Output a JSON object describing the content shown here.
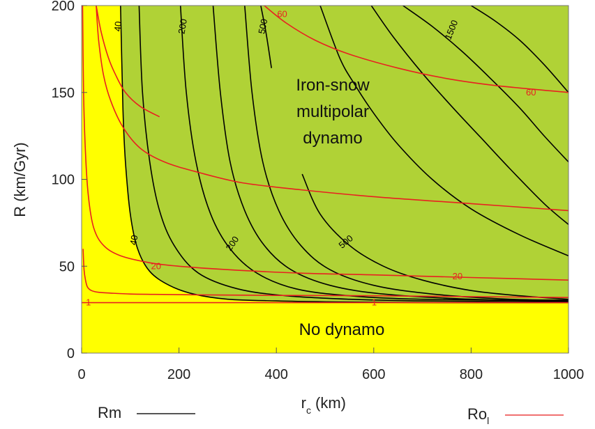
{
  "chart_data": {
    "type": "line",
    "title": "",
    "xlabel": "r",
    "xlabel_sub": "c",
    "xlabel_unit": "(km)",
    "ylabel": "R  (km/Gyr)",
    "xlim": [
      0,
      1000
    ],
    "ylim": [
      0,
      200
    ],
    "xticks": [
      "0",
      "200",
      "400",
      "600",
      "800",
      "1000"
    ],
    "yticks": [
      "0",
      "50",
      "100",
      "150",
      "200"
    ],
    "grid": false,
    "colors": {
      "no_dynamo": "#ffff00",
      "dynamo": "#b0d236",
      "rm": "#000000",
      "ro": "#e82020"
    },
    "regions": [
      {
        "name": "Iron-snow multipolar dynamo",
        "lines": [
          "Iron-snow",
          "multipolar",
          "dynamo"
        ]
      },
      {
        "name": "No dynamo",
        "lines": [
          "No dynamo"
        ]
      }
    ],
    "dynamo_boundary": {
      "x": [
        80,
        85,
        90,
        100,
        115,
        140,
        180,
        230,
        300,
        400,
        500,
        700,
        1000
      ],
      "y": [
        200,
        140,
        110,
        80,
        60,
        47,
        39,
        34,
        31,
        30,
        29.5,
        29,
        29
      ]
    },
    "legend": [
      {
        "label": "Rm",
        "color": "#555555"
      },
      {
        "label": "Ro",
        "sub": "l",
        "color": "#f07070"
      }
    ],
    "series": [
      {
        "name": "Rm",
        "label": "40",
        "color": "#000000",
        "x": [
          80,
          85,
          90,
          100,
          115,
          140,
          180,
          230,
          300,
          400,
          500,
          700,
          1000
        ],
        "y": [
          200,
          140,
          110,
          80,
          60,
          47,
          39,
          34,
          31,
          30,
          29.5,
          29,
          29
        ]
      },
      {
        "name": "Rm",
        "label": "",
        "color": "#000000",
        "x": [
          118,
          125,
          140,
          160,
          190,
          240,
          320,
          420,
          550,
          700,
          1000
        ],
        "y": [
          200,
          150,
          110,
          82,
          62,
          46,
          37,
          33,
          31,
          30,
          29.5
        ]
      },
      {
        "name": "Rm",
        "label": "200",
        "color": "#000000",
        "x": [
          203,
          215,
          235,
          265,
          305,
          360,
          440,
          550,
          700,
          1000
        ],
        "y": [
          200,
          150,
          110,
          80,
          60,
          46,
          37,
          33,
          31,
          30
        ]
      },
      {
        "name": "Rm",
        "label": "",
        "color": "#000000",
        "x": [
          270,
          285,
          305,
          335,
          375,
          430,
          510,
          620,
          800,
          1000
        ],
        "y": [
          200,
          150,
          110,
          82,
          62,
          48,
          39,
          34,
          31,
          30
        ]
      },
      {
        "name": "Rm",
        "label": "",
        "color": "#000000",
        "x": [
          335,
          350,
          372,
          405,
          450,
          510,
          600,
          720,
          880,
          1000
        ],
        "y": [
          200,
          150,
          110,
          82,
          62,
          48,
          39,
          34,
          31,
          30.5
        ]
      },
      {
        "name": "Rm",
        "label": "500",
        "color": "#000000",
        "x": [
          368,
          379,
          390
        ],
        "y": [
          200,
          184,
          164
        ]
      },
      {
        "name": "Rm",
        "label": "500",
        "color": "#000000",
        "x": [
          453,
          490,
          550,
          620,
          700,
          800,
          900,
          1000
        ],
        "y": [
          103,
          80,
          62,
          50,
          42,
          36,
          33,
          31
        ]
      },
      {
        "name": "Rm",
        "label": "",
        "color": "#000000",
        "x": [
          490,
          530,
          560,
          600,
          650,
          720,
          800,
          900,
          1000
        ],
        "y": [
          200,
          170,
          155,
          138,
          120,
          100,
          83,
          68,
          56
        ]
      },
      {
        "name": "Rm",
        "label": "1500",
        "color": "#000000",
        "x": [
          595,
          640,
          700,
          760,
          820,
          880,
          950,
          1000
        ],
        "y": [
          200,
          182,
          161,
          142,
          124,
          106,
          86,
          74
        ]
      },
      {
        "name": "Rm",
        "label": "",
        "color": "#000000",
        "x": [
          660,
          720,
          780,
          840,
          900,
          950,
          1000
        ],
        "y": [
          200,
          188,
          174,
          158,
          141,
          125,
          110
        ]
      },
      {
        "name": "Rm",
        "label": "",
        "color": "#000000",
        "x": [
          800,
          850,
          900,
          950,
          1000
        ],
        "y": [
          200,
          191,
          180,
          166,
          150
        ]
      },
      {
        "name": "Ro",
        "label": "1",
        "color": "#e82020",
        "x": [
          0,
          100,
          300,
          600,
          1000
        ],
        "y": [
          29,
          29,
          29,
          29,
          29
        ]
      },
      {
        "name": "Ro",
        "label": "1",
        "color": "#e82020",
        "x": [
          3,
          5,
          8,
          12,
          20,
          35,
          60,
          100,
          150,
          250,
          400,
          600,
          800,
          1000
        ],
        "y": [
          60,
          48,
          42,
          38,
          36,
          35,
          34.5,
          34,
          33.8,
          33.5,
          33.2,
          33,
          32.5,
          32
        ]
      },
      {
        "name": "Ro",
        "label": "20",
        "color": "#e82020",
        "x": [
          2,
          4,
          8,
          14,
          25,
          45,
          80,
          140,
          200,
          300,
          450,
          600,
          800,
          1000
        ],
        "y": [
          200,
          150,
          115,
          90,
          72,
          62,
          56,
          52,
          50,
          48,
          46,
          45,
          43.5,
          42
        ]
      },
      {
        "name": "Ro",
        "label": "60",
        "color": "#e82020",
        "x": [
          30,
          35,
          45,
          60,
          85,
          120,
          170,
          240,
          330,
          450,
          600,
          800,
          1000
        ],
        "y": [
          200,
          180,
          160,
          145,
          130,
          118,
          110,
          104,
          98,
          94,
          90,
          86,
          82
        ]
      },
      {
        "name": "Ro",
        "label": "60",
        "color": "#e82020",
        "x": [
          375,
          420,
          480,
          550,
          650,
          750,
          850,
          1000
        ],
        "y": [
          200,
          190,
          180,
          172,
          164,
          158,
          154,
          150
        ]
      },
      {
        "name": "Ro",
        "label": "",
        "color": "#e82020",
        "x": [
          30,
          40,
          55,
          70,
          90,
          120,
          160
        ],
        "y": [
          200,
          185,
          170,
          160,
          150,
          142,
          136
        ]
      }
    ],
    "contour_labels": [
      {
        "text": "40",
        "x": 75,
        "y": 188,
        "color": "#000000",
        "angle": -85
      },
      {
        "text": "200",
        "x": 208,
        "y": 188,
        "color": "#000000",
        "angle": -80
      },
      {
        "text": "500",
        "x": 373,
        "y": 188,
        "color": "#000000",
        "angle": -78
      },
      {
        "text": "1500",
        "x": 760,
        "y": 186,
        "color": "#000000",
        "angle": -68
      },
      {
        "text": "40",
        "x": 108,
        "y": 65,
        "color": "#000000",
        "angle": -80
      },
      {
        "text": "200",
        "x": 310,
        "y": 63,
        "color": "#000000",
        "angle": -55
      },
      {
        "text": "500",
        "x": 543,
        "y": 64,
        "color": "#000000",
        "angle": -40
      },
      {
        "text": "60",
        "x": 412,
        "y": 195,
        "color": "#e82020",
        "angle": 0
      },
      {
        "text": "60",
        "x": 923,
        "y": 150,
        "color": "#e82020",
        "angle": 0
      },
      {
        "text": "20",
        "x": 153,
        "y": 50,
        "color": "#e82020",
        "angle": 0
      },
      {
        "text": "20",
        "x": 772,
        "y": 44,
        "color": "#e82020",
        "angle": 0
      },
      {
        "text": "1",
        "x": 14,
        "y": 29,
        "color": "#e82020",
        "angle": 0
      },
      {
        "text": "1",
        "x": 601,
        "y": 29,
        "color": "#e82020",
        "angle": 0
      }
    ]
  }
}
